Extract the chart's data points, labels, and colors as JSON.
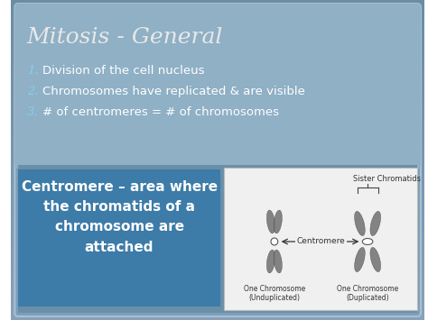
{
  "title": "Mitosis - General",
  "title_color": "#e8e8e8",
  "title_fontsize": 18,
  "title_style": "italic",
  "title_family": "serif",
  "bullet_numbers": [
    "1.",
    "2.",
    "3."
  ],
  "bullets": [
    "Division of the cell nucleus",
    "Chromosomes have replicated & are visible",
    "# of centromeres = # of chromosomes"
  ],
  "bullet_color": "#ffffff",
  "bullet_number_color": "#87ceeb",
  "bullet_fontsize": 9.5,
  "highlight_box_color": "#3d7ba8",
  "highlight_text": "Centromere – area where\nthe chromatids of a\nchromosome are\nattached",
  "highlight_text_color": "#ffffff",
  "highlight_fontsize": 11,
  "diagram_bg": "#f0f0f0",
  "diagram_text_color": "#333333",
  "diagram_label": "Centromere",
  "diagram_top_label": "Sister Chromatids",
  "diagram_bottom_left": "One Chromosome\n(Unduplicated)",
  "diagram_bottom_right": "One Chromosome\n(Duplicated)",
  "slide_bg_dark": "#5a7a8f",
  "slide_bg_light": "#8aafc4",
  "figsize": [
    4.74,
    3.55
  ],
  "dpi": 100
}
